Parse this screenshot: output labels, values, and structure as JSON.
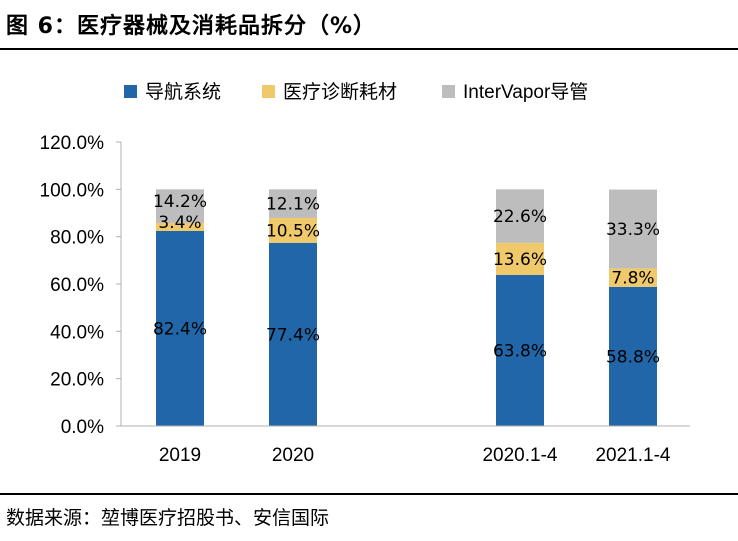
{
  "header": {
    "title": "图 6：医疗器械及消耗品拆分（%）"
  },
  "footer": {
    "source": "数据来源：堃博医疗招股书、安信国际"
  },
  "colors": {
    "nav": "#2166a8",
    "diag": "#efc96a",
    "intervapor": "#bdbdbd",
    "axis": "#b0b0b0"
  },
  "chart_data": {
    "type": "bar",
    "stacked": true,
    "categories": [
      "2019",
      "2020",
      "2020.1-4",
      "2021.1-4"
    ],
    "ylim": [
      0,
      120
    ],
    "yticks": [
      "0.0%",
      "20.0%",
      "40.0%",
      "60.0%",
      "80.0%",
      "100.0%",
      "120.0%"
    ],
    "legend_position": "top",
    "series": [
      {
        "name": "导航系统",
        "values": [
          82.4,
          77.4,
          63.8,
          58.8
        ],
        "labels": [
          "82.4%",
          "77.4%",
          "63.8%",
          "58.8%"
        ]
      },
      {
        "name": "医疗诊断耗材",
        "values": [
          3.4,
          10.5,
          13.6,
          7.8
        ],
        "labels": [
          "3.4%",
          "10.5%",
          "13.6%",
          "7.8%"
        ]
      },
      {
        "name": "InterVapor导管",
        "values": [
          14.2,
          12.1,
          22.6,
          33.3
        ],
        "labels": [
          "14.2%",
          "12.1%",
          "22.6%",
          "33.3%"
        ]
      }
    ]
  }
}
